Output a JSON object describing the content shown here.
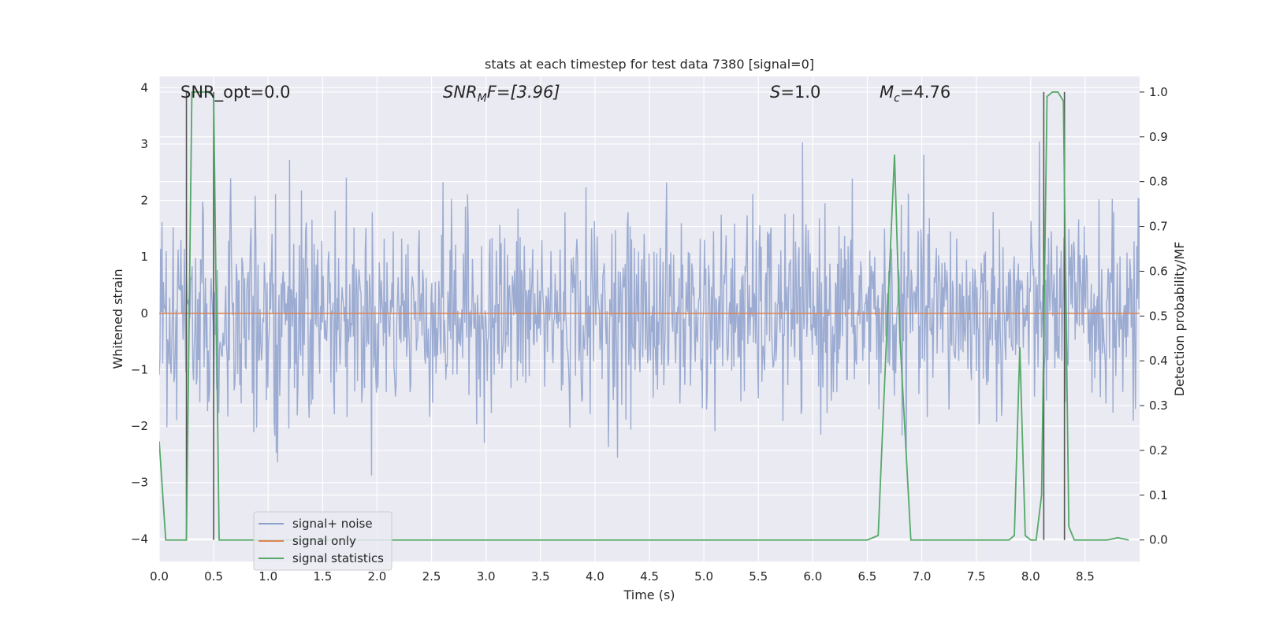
{
  "chart_data": {
    "type": "line",
    "title": "stats at each timestep for test data 7380 [signal=0]",
    "xlabel": "Time (s)",
    "ylabel_left": "Whitened strain",
    "ylabel_right": "Detection probability/MF",
    "xlim": [
      0.0,
      9.0
    ],
    "ylim_left": [
      -4.4,
      4.2
    ],
    "ylim_right": [
      -0.048,
      1.035
    ],
    "x_ticks": [
      "0.0",
      "0.5",
      "1.0",
      "1.5",
      "2.0",
      "2.5",
      "3.0",
      "3.5",
      "4.0",
      "4.5",
      "5.0",
      "5.5",
      "6.0",
      "6.5",
      "7.0",
      "7.5",
      "8.0",
      "8.5"
    ],
    "y_ticks_left": [
      "−4",
      "−3",
      "−2",
      "−1",
      "0",
      "1",
      "2",
      "3",
      "4"
    ],
    "y_ticks_right": [
      "0.0",
      "0.1",
      "0.2",
      "0.3",
      "0.4",
      "0.5",
      "0.6",
      "0.7",
      "0.8",
      "0.9",
      "1.0"
    ],
    "annotations": {
      "snr_opt": "SNR_opt=0.0",
      "snr_mf_prefix": "SNR",
      "snr_mf_sub": "M",
      "snr_mf_suffix": "F=[3.96]",
      "s_var": "S",
      "s_value": "=1.0",
      "mc_var": "M",
      "mc_sub": "c",
      "mc_value": "=4.76"
    },
    "legend": {
      "location": "lower-left",
      "entries": [
        "signal+ noise",
        "signal only",
        "signal statistics"
      ]
    },
    "colors": {
      "noise": "#8da0cb",
      "signal": "#dd8452",
      "stats": "#55a868",
      "vlines": "#555555",
      "background": "#eaeaf2",
      "grid": "#ffffff"
    },
    "series": [
      {
        "name": "signal statistics",
        "axis": "right",
        "x": [
          0.0,
          0.06,
          0.1,
          0.2,
          0.25,
          0.3,
          0.4,
          0.45,
          0.5,
          0.55,
          0.6,
          0.7,
          1.0,
          2.0,
          3.0,
          4.0,
          5.0,
          5.9,
          6.0,
          6.1,
          6.5,
          6.6,
          6.65,
          6.75,
          6.8,
          6.9,
          7.0,
          7.5,
          7.8,
          7.85,
          7.9,
          7.95,
          8.0,
          8.05,
          8.1,
          8.15,
          8.2,
          8.25,
          8.3,
          8.35,
          8.4,
          8.5,
          8.7,
          8.8,
          8.9
        ],
        "values": [
          0.22,
          0.0,
          0.0,
          0.0,
          0.0,
          1.0,
          1.0,
          1.0,
          0.99,
          0.0,
          0.0,
          0.0,
          0.0,
          0.0,
          0.0,
          0.0,
          0.0,
          0.0,
          0.0,
          0.0,
          0.0,
          0.01,
          0.3,
          0.86,
          0.45,
          0.0,
          0.0,
          0.0,
          0.0,
          0.01,
          0.43,
          0.01,
          0.0,
          0.0,
          0.1,
          0.99,
          1.0,
          1.0,
          0.98,
          0.03,
          0.0,
          0.0,
          0.0,
          0.005,
          0.0
        ]
      },
      {
        "name": "signal only",
        "axis": "left",
        "x": [
          0.0,
          9.0
        ],
        "values": [
          0.0,
          0.0
        ]
      },
      {
        "name": "signal+ noise",
        "axis": "left",
        "kind": "gaussian-noise",
        "sigma": 0.85,
        "samples_drawn": 1400
      }
    ],
    "vlines_x": [
      0.25,
      0.5,
      8.12,
      8.31
    ]
  }
}
